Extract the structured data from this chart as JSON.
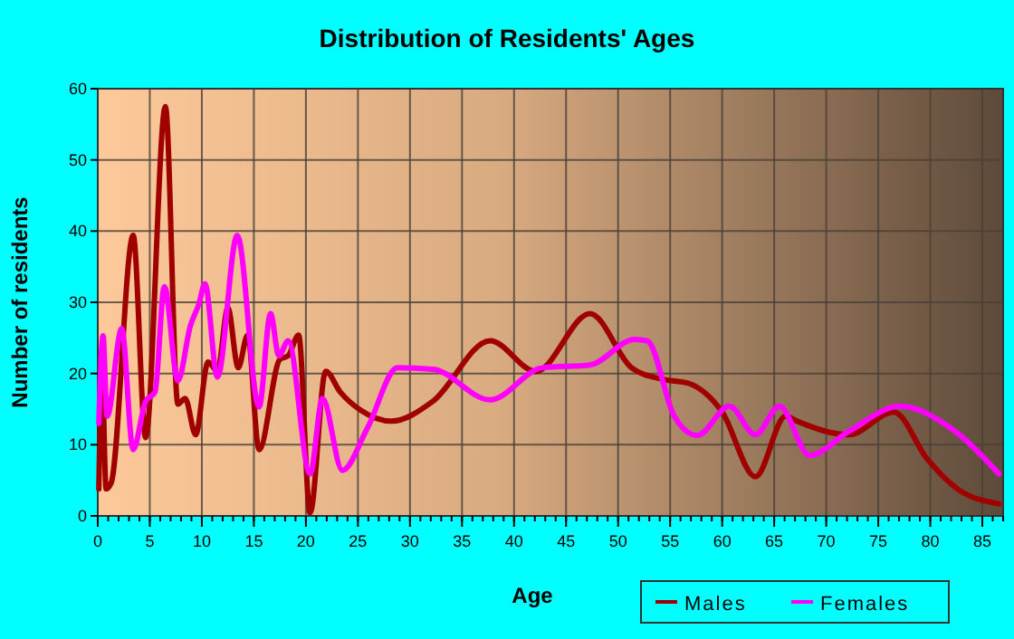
{
  "chart_data": {
    "type": "line",
    "title": "Distribution of Residents' Ages",
    "xlabel": "Age",
    "ylabel": "Number of residents",
    "xlim": [
      0,
      87
    ],
    "ylim": [
      0,
      60
    ],
    "xticks": [
      0,
      5,
      10,
      15,
      20,
      25,
      30,
      35,
      40,
      45,
      50,
      55,
      60,
      65,
      70,
      75,
      80,
      85
    ],
    "yticks": [
      0,
      10,
      20,
      30,
      40,
      50,
      60
    ],
    "grid": true,
    "legend": "bottom right",
    "marker": "none",
    "line_style": "solid",
    "series": [
      {
        "name": "Males",
        "color": "#a00000",
        "x": [
          0.1,
          0.4,
          0.8,
          1.3,
          3.4,
          4.6,
          6.5,
          7.7,
          8.4,
          9.4,
          10.6,
          11.5,
          12.5,
          13.5,
          14.4,
          15.5,
          17.5,
          18.3,
          19.3,
          20.4,
          21.9,
          23.3,
          25.3,
          28.2,
          32.2,
          37.7,
          42.1,
          47.3,
          51.3,
          54.2,
          56.8,
          60,
          63.2,
          66.1,
          67.2,
          72.2,
          76.5,
          79.7,
          82.6,
          86.6
        ],
        "values": [
          3.8,
          20.8,
          3.8,
          4.7,
          39.4,
          11,
          57.5,
          15.7,
          16.5,
          11.4,
          21.6,
          20.3,
          29.2,
          20.8,
          25.4,
          9.3,
          22,
          22.5,
          25.4,
          0.4,
          20.3,
          17.4,
          14.8,
          13.3,
          16.1,
          24.6,
          20.3,
          28.4,
          20.8,
          19.2,
          18.6,
          14.6,
          5.5,
          14,
          13.3,
          11.4,
          14.6,
          8,
          3.8,
          1.7
        ]
      },
      {
        "name": "Females",
        "color": "#ff00ff",
        "x": [
          0.1,
          0.5,
          0.9,
          2.3,
          3.4,
          4.6,
          5.5,
          6.4,
          7.7,
          8.9,
          9.7,
          10.3,
          11.5,
          13.4,
          15.5,
          16.6,
          17.4,
          18.3,
          20.4,
          21.6,
          23.5,
          25.9,
          28.8,
          32.2,
          37.7,
          42.7,
          47.3,
          51.6,
          52.8,
          55.4,
          57.6,
          60.7,
          63.2,
          65.5,
          68.4,
          72.2,
          77.1,
          82,
          86.6
        ],
        "values": [
          13,
          25.3,
          14,
          26.3,
          9.3,
          16.1,
          17.4,
          32.2,
          19,
          26.7,
          29.7,
          32.6,
          19.5,
          39.4,
          15.3,
          28.4,
          22.5,
          24.6,
          5.9,
          16.5,
          6.4,
          12.3,
          20.8,
          20.6,
          16.3,
          20.8,
          21.2,
          24.8,
          24.6,
          14,
          11.3,
          15.4,
          11.4,
          15.4,
          8.5,
          11.9,
          15.4,
          12.3,
          5.9
        ]
      }
    ]
  }
}
